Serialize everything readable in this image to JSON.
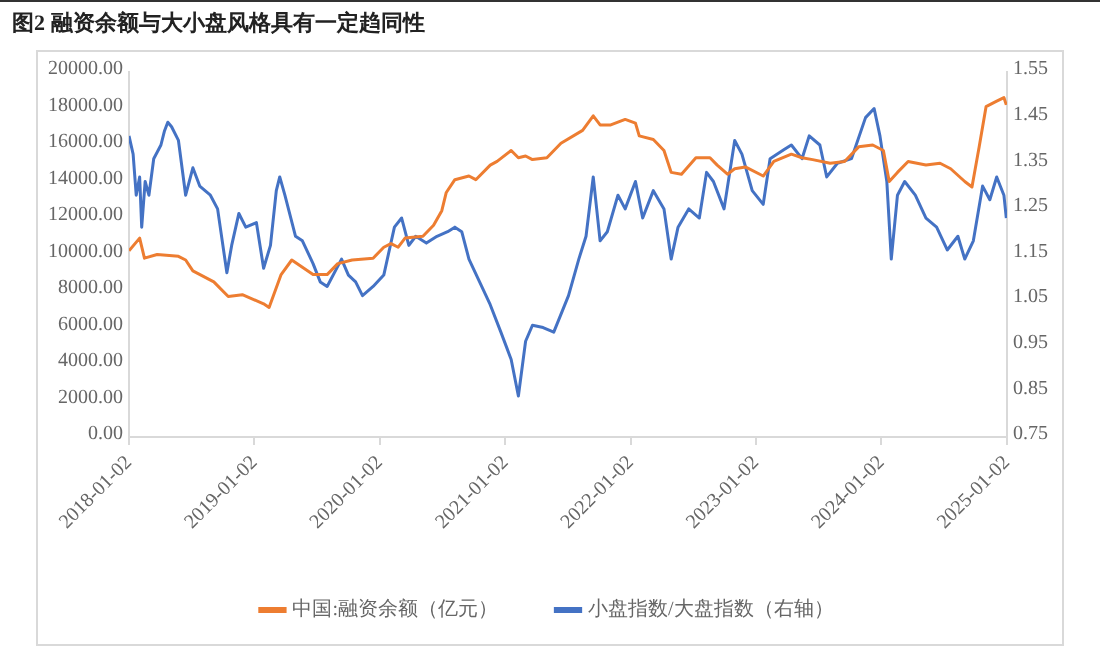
{
  "chart_data": {
    "type": "line",
    "title": "图2  融资余额与大小盘风格具有一定趋同性",
    "legend": "bottom",
    "grid": false,
    "marker": "none",
    "line_style": "solid",
    "xlim": [
      "2018-01-02",
      "2025-01-02"
    ],
    "xticks": [
      "2018-01-02",
      "2019-01-02",
      "2020-01-02",
      "2021-01-02",
      "2022-01-02",
      "2023-01-02",
      "2024-01-02",
      "2025-01-02"
    ],
    "ylim": [
      0,
      20000
    ],
    "yticks": [
      {
        "value": 0,
        "label": "0.00"
      },
      {
        "value": 2000,
        "label": "2000.00"
      },
      {
        "value": 4000,
        "label": "4000.00"
      },
      {
        "value": 6000,
        "label": "6000.00"
      },
      {
        "value": 8000,
        "label": "8000.00"
      },
      {
        "value": 10000,
        "label": "10000.00"
      },
      {
        "value": 12000,
        "label": "12000.00"
      },
      {
        "value": 14000,
        "label": "14000.00"
      },
      {
        "value": 16000,
        "label": "16000.00"
      },
      {
        "value": 18000,
        "label": "18000.00"
      },
      {
        "value": 20000,
        "label": "20000.00"
      }
    ],
    "y2lim": [
      0.75,
      1.55
    ],
    "y2ticks": [
      0.75,
      0.85,
      0.95,
      1.05,
      1.15,
      1.25,
      1.35,
      1.45,
      1.55
    ],
    "series": [
      {
        "name": "中国:融资余额（亿元）",
        "color": "#ed7d31",
        "axis": "y",
        "x": [
          "2018-01-02",
          "2018-02-02",
          "2018-02-16",
          "2018-03-25",
          "2018-05-26",
          "2018-06-16",
          "2018-07-07",
          "2018-09-06",
          "2018-10-18",
          "2018-11-28",
          "2019-01-29",
          "2019-02-14",
          "2019-03-21",
          "2019-04-21",
          "2019-05-22",
          "2019-06-22",
          "2019-08-02",
          "2019-09-02",
          "2019-10-14",
          "2019-12-14",
          "2020-01-14",
          "2020-02-04",
          "2020-02-25",
          "2020-03-16",
          "2020-05-07",
          "2020-06-07",
          "2020-07-01",
          "2020-07-14",
          "2020-08-08",
          "2020-09-18",
          "2020-10-08",
          "2020-11-19",
          "2020-12-09",
          "2021-01-19",
          "2021-02-09",
          "2021-03-02",
          "2021-03-22",
          "2021-05-03",
          "2021-06-13",
          "2021-08-15",
          "2021-09-15",
          "2021-10-05",
          "2021-11-05",
          "2021-12-17",
          "2022-01-16",
          "2022-01-27",
          "2022-03-09",
          "2022-04-09",
          "2022-04-30",
          "2022-05-30",
          "2022-07-11",
          "2022-08-21",
          "2022-09-11",
          "2022-10-11",
          "2022-11-01",
          "2022-12-02",
          "2023-01-23",
          "2023-02-23",
          "2023-04-15",
          "2023-05-16",
          "2023-06-16",
          "2023-08-06",
          "2023-09-17",
          "2023-10-28",
          "2023-12-08",
          "2024-01-08",
          "2024-01-25",
          "2024-02-18",
          "2024-03-20",
          "2024-05-11",
          "2024-06-21",
          "2024-07-22",
          "2024-09-01",
          "2024-09-22",
          "2024-10-13",
          "2024-11-02",
          "2024-12-03",
          "2024-12-24",
          "2024-12-31"
        ],
        "values": [
          10200,
          10900,
          9800,
          10000,
          9900,
          9700,
          9100,
          8500,
          7700,
          7800,
          7300,
          7100,
          8900,
          9700,
          9300,
          8900,
          8900,
          9500,
          9700,
          9800,
          10400,
          10600,
          10400,
          10900,
          11000,
          11600,
          12400,
          13400,
          14100,
          14300,
          14100,
          14900,
          15100,
          15700,
          15300,
          15400,
          15200,
          15300,
          16100,
          16800,
          17600,
          17100,
          17100,
          17400,
          17200,
          16500,
          16300,
          15700,
          14500,
          14400,
          15300,
          15300,
          14900,
          14400,
          14700,
          14800,
          14300,
          15100,
          15500,
          15300,
          15200,
          15000,
          15100,
          15900,
          16000,
          15700,
          14000,
          14500,
          15100,
          14900,
          15000,
          14700,
          14000,
          13700,
          15900,
          18100,
          18400,
          18600,
          18200
        ]
      },
      {
        "name": "小盘指数/大盘指数（右轴）",
        "color": "#4472c4",
        "axis": "y2",
        "x": [
          "2018-01-02",
          "2018-01-14",
          "2018-01-23",
          "2018-02-02",
          "2018-02-08",
          "2018-02-18",
          "2018-03-01",
          "2018-03-15",
          "2018-04-05",
          "2018-04-15",
          "2018-04-25",
          "2018-05-06",
          "2018-05-26",
          "2018-06-16",
          "2018-07-07",
          "2018-07-27",
          "2018-08-27",
          "2018-09-17",
          "2018-10-14",
          "2018-10-28",
          "2018-11-18",
          "2018-12-08",
          "2019-01-08",
          "2019-01-29",
          "2019-02-18",
          "2019-03-07",
          "2019-03-17",
          "2019-04-01",
          "2019-05-02",
          "2019-05-22",
          "2019-06-22",
          "2019-07-13",
          "2019-08-02",
          "2019-09-13",
          "2019-10-03",
          "2019-10-24",
          "2019-11-13",
          "2019-12-14",
          "2020-01-14",
          "2020-02-14",
          "2020-03-06",
          "2020-03-27",
          "2020-04-16",
          "2020-05-17",
          "2020-06-17",
          "2020-07-18",
          "2020-08-08",
          "2020-08-28",
          "2020-09-18",
          "2020-10-19",
          "2020-11-19",
          "2020-12-20",
          "2021-01-19",
          "2021-02-09",
          "2021-03-02",
          "2021-03-22",
          "2021-04-22",
          "2021-05-23",
          "2021-07-05",
          "2021-08-04",
          "2021-08-25",
          "2021-09-15",
          "2021-10-05",
          "2021-10-26",
          "2021-11-26",
          "2021-12-17",
          "2022-01-16",
          "2022-02-06",
          "2022-03-09",
          "2022-04-09",
          "2022-04-30",
          "2022-05-20",
          "2022-06-20",
          "2022-07-21",
          "2022-08-11",
          "2022-08-31",
          "2022-10-01",
          "2022-11-01",
          "2022-11-22",
          "2022-12-22",
          "2023-01-23",
          "2023-02-12",
          "2023-03-25",
          "2023-04-15",
          "2023-05-16",
          "2023-06-06",
          "2023-07-07",
          "2023-07-27",
          "2023-08-27",
          "2023-10-07",
          "2023-11-17",
          "2023-12-12",
          "2023-12-29",
          "2024-01-18",
          "2024-01-31",
          "2024-02-18",
          "2024-03-10",
          "2024-04-10",
          "2024-05-11",
          "2024-06-11",
          "2024-07-12",
          "2024-08-12",
          "2024-09-01",
          "2024-09-26",
          "2024-10-23",
          "2024-11-13",
          "2024-12-03",
          "2024-12-24",
          "2024-12-31"
        ],
        "values": [
          1.41,
          1.37,
          1.28,
          1.32,
          1.21,
          1.31,
          1.28,
          1.36,
          1.39,
          1.42,
          1.44,
          1.43,
          1.4,
          1.28,
          1.34,
          1.3,
          1.28,
          1.25,
          1.11,
          1.17,
          1.24,
          1.21,
          1.22,
          1.12,
          1.17,
          1.29,
          1.32,
          1.28,
          1.19,
          1.18,
          1.13,
          1.09,
          1.08,
          1.14,
          1.105,
          1.09,
          1.06,
          1.08,
          1.105,
          1.21,
          1.23,
          1.17,
          1.19,
          1.175,
          1.19,
          1.2,
          1.21,
          1.2,
          1.14,
          1.09,
          1.04,
          0.98,
          0.92,
          0.84,
          0.96,
          0.995,
          0.99,
          0.98,
          1.06,
          1.14,
          1.19,
          1.32,
          1.18,
          1.2,
          1.28,
          1.25,
          1.31,
          1.23,
          1.29,
          1.25,
          1.14,
          1.21,
          1.25,
          1.23,
          1.33,
          1.31,
          1.25,
          1.4,
          1.37,
          1.29,
          1.26,
          1.36,
          1.38,
          1.39,
          1.36,
          1.41,
          1.39,
          1.32,
          1.35,
          1.36,
          1.45,
          1.47,
          1.41,
          1.31,
          1.14,
          1.28,
          1.31,
          1.28,
          1.23,
          1.21,
          1.16,
          1.19,
          1.14,
          1.18,
          1.3,
          1.27,
          1.32,
          1.28,
          1.23
        ]
      }
    ]
  }
}
